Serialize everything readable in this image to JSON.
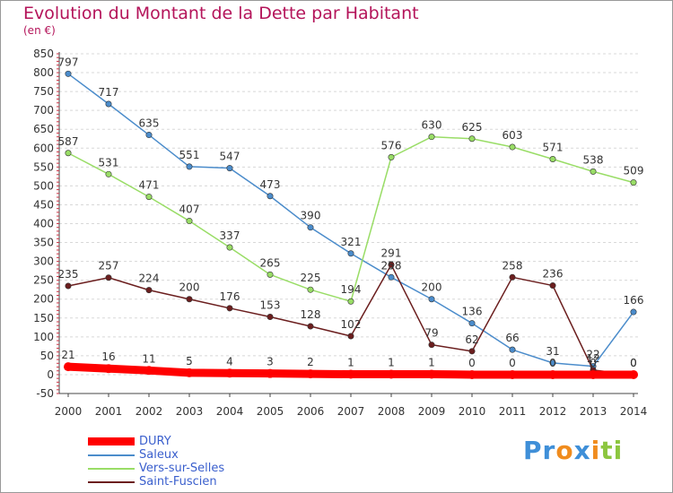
{
  "chart_data": {
    "type": "line",
    "title": "Evolution du Montant de la Dette par Habitant",
    "subtitle": "(en €)",
    "x": [
      "2000",
      "2001",
      "2002",
      "2003",
      "2004",
      "2005",
      "2006",
      "2007",
      "2008",
      "2009",
      "2010",
      "2011",
      "2012",
      "2013",
      "2014"
    ],
    "ylim": [
      -50,
      850
    ],
    "yticks": [
      -50,
      0,
      50,
      100,
      150,
      200,
      250,
      300,
      350,
      400,
      450,
      500,
      550,
      600,
      650,
      700,
      750,
      800,
      850
    ],
    "grid": "horizontal",
    "legend_position": "bottom-left",
    "series": [
      {
        "name": "DURY",
        "color": "#ff0000",
        "values": [
          21,
          16,
          11,
          5,
          4,
          3,
          2,
          1,
          1,
          1,
          0,
          0,
          0,
          0,
          0
        ]
      },
      {
        "name": "Saleux",
        "color": "#4b8ccb",
        "values": [
          797,
          717,
          635,
          551,
          547,
          473,
          390,
          321,
          258,
          200,
          136,
          66,
          31,
          22,
          166
        ]
      },
      {
        "name": "Vers-sur-Selles",
        "color": "#99dd66",
        "values": [
          587,
          531,
          471,
          407,
          337,
          265,
          225,
          194,
          576,
          630,
          625,
          603,
          571,
          538,
          509
        ]
      },
      {
        "name": "Saint-Fuscien",
        "color": "#6b1e1e",
        "values": [
          235,
          257,
          224,
          200,
          176,
          153,
          128,
          102,
          291,
          79,
          62,
          258,
          236,
          12,
          0
        ]
      }
    ]
  },
  "brand": {
    "letters": [
      {
        "ch": "P",
        "color": "#3f8fd8"
      },
      {
        "ch": "r",
        "color": "#3f8fd8"
      },
      {
        "ch": "o",
        "color": "#f08c1e"
      },
      {
        "ch": "x",
        "color": "#3f8fd8"
      },
      {
        "ch": "i",
        "color": "#f08c1e"
      },
      {
        "ch": "t",
        "color": "#8cc63f"
      },
      {
        "ch": "i",
        "color": "#8cc63f"
      }
    ]
  }
}
